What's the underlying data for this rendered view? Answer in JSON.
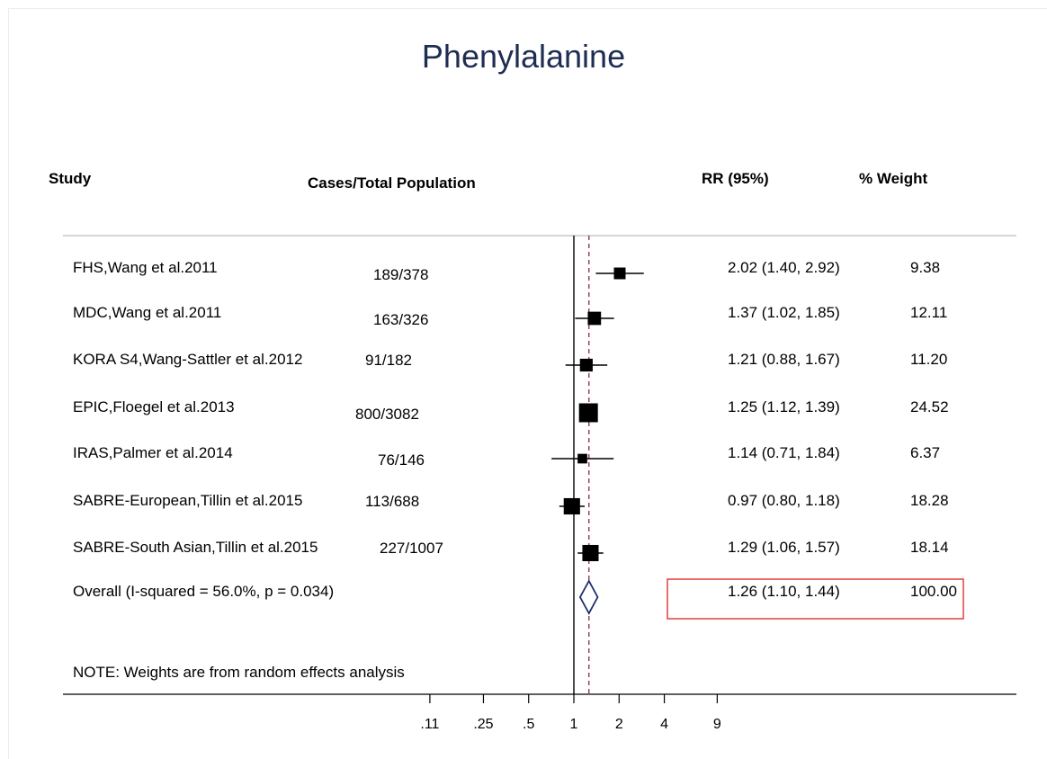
{
  "chart_data": {
    "type": "forest",
    "title": "Phenylalanine",
    "columns": {
      "study": "Study",
      "cases": "Cases/Total Population",
      "rr": "RR (95%)",
      "weight": "% Weight"
    },
    "studies": [
      {
        "study": "FHS,Wang et al.2011",
        "cases": "189/378",
        "rr": 2.02,
        "lower": 1.4,
        "upper": 2.92,
        "rr_text": "2.02 (1.40, 2.92)",
        "weight": 9.38,
        "weight_text": "9.38"
      },
      {
        "study": "MDC,Wang et al.2011",
        "cases": "163/326",
        "rr": 1.37,
        "lower": 1.02,
        "upper": 1.85,
        "rr_text": "1.37 (1.02, 1.85)",
        "weight": 12.11,
        "weight_text": "12.11"
      },
      {
        "study": "KORA S4,Wang-Sattler et al.2012",
        "cases": "91/182",
        "rr": 1.21,
        "lower": 0.88,
        "upper": 1.67,
        "rr_text": "1.21 (0.88, 1.67)",
        "weight": 11.2,
        "weight_text": "11.20"
      },
      {
        "study": "EPIC,Floegel et al.2013",
        "cases": "800/3082",
        "rr": 1.25,
        "lower": 1.12,
        "upper": 1.39,
        "rr_text": "1.25 (1.12, 1.39)",
        "weight": 24.52,
        "weight_text": "24.52"
      },
      {
        "study": "IRAS,Palmer et al.2014",
        "cases": "76/146",
        "rr": 1.14,
        "lower": 0.71,
        "upper": 1.84,
        "rr_text": "1.14 (0.71, 1.84)",
        "weight": 6.37,
        "weight_text": "6.37"
      },
      {
        "study": "SABRE-European,Tillin et al.2015",
        "cases": "113/688",
        "rr": 0.97,
        "lower": 0.8,
        "upper": 1.18,
        "rr_text": "0.97 (0.80, 1.18)",
        "weight": 18.28,
        "weight_text": "18.28"
      },
      {
        "study": "SABRE-South Asian,Tillin et al.2015",
        "cases": "227/1007",
        "rr": 1.29,
        "lower": 1.06,
        "upper": 1.57,
        "rr_text": "1.29 (1.06, 1.57)",
        "weight": 18.14,
        "weight_text": "18.14"
      }
    ],
    "overall": {
      "label": "Overall  (I-squared = 56.0%, p = 0.034)",
      "rr": 1.26,
      "lower": 1.1,
      "upper": 1.44,
      "rr_text": "1.26 (1.10, 1.44)",
      "weight_text": "100.00"
    },
    "note": "NOTE: Weights are from random effects analysis",
    "x_axis": {
      "scale": "log",
      "ticks": [
        0.11,
        0.25,
        0.5,
        1,
        2,
        4,
        9
      ],
      "tick_labels": [
        ".11",
        ".25",
        ".5",
        "1",
        "2",
        "4",
        "9"
      ]
    },
    "colors": {
      "title": "#1e2d52",
      "diamond": "#1e2d6b",
      "overall_line": "#8b2a3a",
      "highlight_box": "#e03030"
    }
  }
}
